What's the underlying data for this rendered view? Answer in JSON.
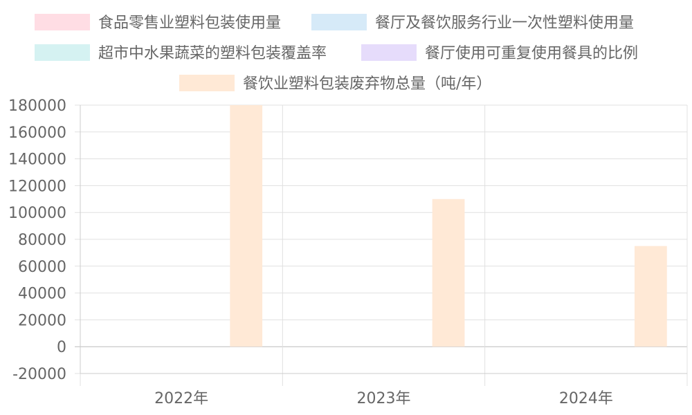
{
  "chart_data": {
    "type": "bar",
    "categories": [
      "2022年",
      "2023年",
      "2024年"
    ],
    "series": [
      {
        "name": "食品零售业塑料包装使用量",
        "color": "#ffdde4",
        "values": [
          0,
          0,
          0
        ]
      },
      {
        "name": "餐厅及餐饮服务行业一次性塑料使用量",
        "color": "#d6eaf8",
        "values": [
          0,
          0,
          0
        ]
      },
      {
        "name": "超市中水果蔬菜的塑料包装覆盖率",
        "color": "#d5f2f2",
        "values": [
          0,
          0,
          0
        ]
      },
      {
        "name": "餐厅使用可重复使用餐具的比例",
        "color": "#e6dcfb",
        "values": [
          0,
          0,
          0
        ]
      },
      {
        "name": "餐饮业塑料包装废弃物总量（吨/年）",
        "color": "#ffe9d6",
        "values": [
          180000,
          110000,
          75000
        ]
      }
    ],
    "ylim": [
      -20000,
      180000
    ],
    "yticks": [
      180000,
      160000,
      140000,
      120000,
      100000,
      80000,
      60000,
      40000,
      20000,
      0,
      -20000
    ],
    "grid": true,
    "legend": "top"
  }
}
